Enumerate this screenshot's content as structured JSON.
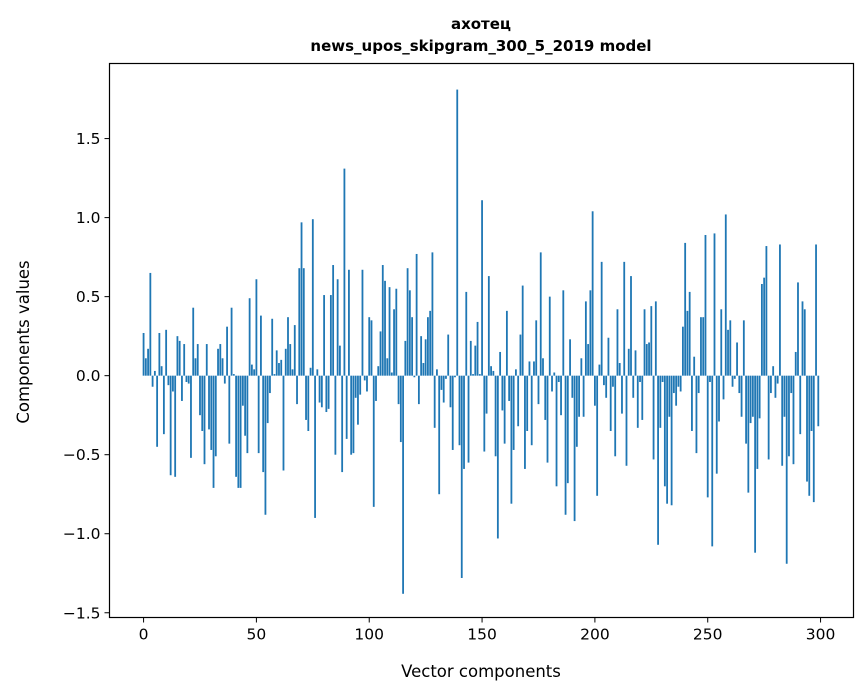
{
  "chart_data": {
    "type": "bar",
    "title": [
      "ахотец",
      "news_upos_skipgram_300_5_2019 model"
    ],
    "xlabel": "Vector components",
    "ylabel": "Components values",
    "xlim": [
      -15.1,
      314.6
    ],
    "ylim": [
      -1.53,
      1.975
    ],
    "xticks": [
      0,
      50,
      100,
      150,
      200,
      250,
      300
    ],
    "xtick_labels": [
      "0",
      "50",
      "100",
      "150",
      "200",
      "250",
      "300"
    ],
    "yticks": [
      -1.5,
      -1.0,
      -0.5,
      0.0,
      0.5,
      1.0,
      1.5
    ],
    "ytick_labels": [
      "−1.5",
      "−1.0",
      "−0.5",
      "0.0",
      "0.5",
      "1.0",
      "1.5"
    ],
    "grid": false,
    "bar_color": "#1f77b4",
    "x_start": 0,
    "values": [
      0.27,
      0.11,
      0.17,
      0.65,
      -0.07,
      0.03,
      -0.45,
      0.27,
      0.06,
      -0.37,
      0.29,
      -0.06,
      -0.63,
      -0.1,
      -0.64,
      0.25,
      0.22,
      -0.16,
      0.2,
      -0.04,
      -0.05,
      -0.52,
      0.43,
      0.11,
      0.2,
      -0.25,
      -0.35,
      -0.56,
      0.2,
      -0.34,
      -0.47,
      -0.71,
      -0.51,
      0.17,
      0.2,
      0.11,
      -0.05,
      0.31,
      -0.43,
      0.43,
      0.01,
      -0.64,
      -0.71,
      -0.71,
      -0.19,
      -0.38,
      -0.49,
      0.49,
      0.07,
      0.04,
      0.61,
      -0.49,
      0.38,
      -0.61,
      -0.88,
      -0.3,
      -0.11,
      0.36,
      0.01,
      0.16,
      0.08,
      0.1,
      -0.6,
      0.17,
      0.37,
      0.2,
      0.04,
      0.32,
      -0.18,
      0.68,
      0.97,
      0.68,
      -0.28,
      -0.35,
      0.05,
      0.99,
      -0.9,
      0.04,
      -0.17,
      -0.2,
      0.51,
      -0.23,
      -0.21,
      0.51,
      0.7,
      -0.5,
      0.61,
      0.19,
      -0.61,
      1.31,
      -0.4,
      0.67,
      -0.5,
      -0.49,
      -0.14,
      -0.31,
      -0.12,
      0.67,
      -0.03,
      -0.1,
      0.37,
      0.35,
      -0.83,
      -0.16,
      0.06,
      0.28,
      0.7,
      0.6,
      0.11,
      0.56,
      0.02,
      0.42,
      0.55,
      -0.18,
      -0.42,
      -1.38,
      0.22,
      0.68,
      0.54,
      0.37,
      -0.01,
      0.77,
      -0.18,
      0.25,
      0.08,
      0.23,
      0.37,
      0.41,
      0.78,
      -0.33,
      0.04,
      -0.75,
      -0.09,
      -0.17,
      -0.02,
      0.26,
      -0.2,
      -0.47,
      -0.01,
      1.81,
      -0.44,
      -1.28,
      -0.59,
      0.53,
      -0.55,
      0.22,
      0.01,
      0.19,
      0.34,
      0.01,
      1.11,
      -0.48,
      -0.24,
      0.63,
      0.06,
      0.03,
      -0.51,
      -1.03,
      0.15,
      -0.22,
      -0.43,
      0.41,
      -0.16,
      -0.81,
      -0.47,
      0.04,
      -0.32,
      0.26,
      0.57,
      -0.59,
      -0.35,
      0.09,
      -0.44,
      0.09,
      0.35,
      -0.18,
      0.78,
      0.11,
      -0.28,
      -0.55,
      0.5,
      -0.1,
      0.02,
      -0.7,
      -0.04,
      -0.25,
      0.54,
      -0.88,
      -0.68,
      0.23,
      -0.14,
      -0.92,
      -0.45,
      -0.26,
      0.11,
      -0.26,
      0.47,
      0.2,
      0.54,
      1.04,
      -0.19,
      -0.76,
      0.07,
      0.72,
      -0.06,
      -0.14,
      0.24,
      -0.35,
      -0.07,
      -0.51,
      0.42,
      0.08,
      -0.24,
      0.72,
      -0.57,
      0.17,
      0.63,
      -0.14,
      0.16,
      -0.33,
      -0.04,
      -0.28,
      0.42,
      0.2,
      0.21,
      0.44,
      -0.53,
      0.47,
      -1.07,
      -0.33,
      -0.04,
      -0.7,
      -0.81,
      -0.26,
      -0.82,
      -0.11,
      -0.19,
      -0.07,
      -0.1,
      0.31,
      0.84,
      0.41,
      0.53,
      -0.35,
      0.12,
      -0.49,
      -0.11,
      0.37,
      0.37,
      0.89,
      -0.77,
      -0.04,
      -1.08,
      0.9,
      -0.62,
      -0.29,
      0.42,
      -0.15,
      1.02,
      0.29,
      0.35,
      -0.07,
      -0.02,
      0.21,
      -0.11,
      -0.26,
      0.35,
      -0.43,
      -0.74,
      -0.3,
      -0.26,
      -1.12,
      -0.59,
      -0.27,
      0.58,
      0.62,
      0.82,
      -0.53,
      -0.11,
      0.06,
      -0.14,
      -0.05,
      0.83,
      -0.57,
      -0.26,
      -1.19,
      -0.51,
      -0.11,
      -0.56,
      0.15,
      0.59,
      -0.37,
      0.47,
      0.42,
      -0.67,
      -0.76,
      -0.35,
      -0.8,
      0.83,
      -0.32
    ]
  }
}
